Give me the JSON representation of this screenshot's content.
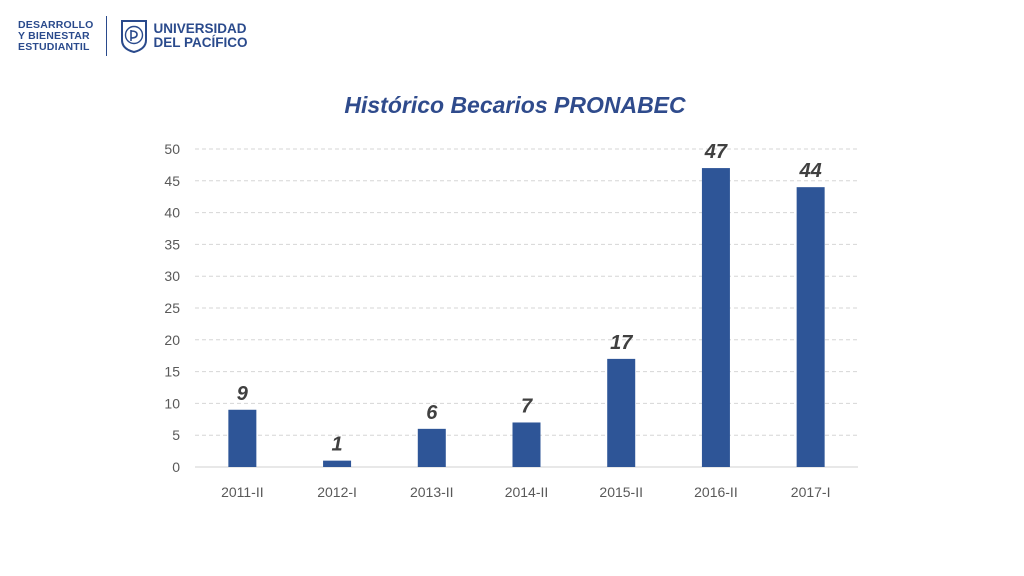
{
  "header": {
    "dept_line1": "DESARROLLO",
    "dept_line2": "Y BIENESTAR",
    "dept_line3": "ESTUDIANTIL",
    "uni_line1": "UNIVERSIDAD",
    "uni_line2": "DEL PACÍFICO",
    "brand_color": "#2a4a8c"
  },
  "chart_data": {
    "type": "bar",
    "title": "Histórico Becarios PRONABEC",
    "categories": [
      "2011-II",
      "2012-I",
      "2013-II",
      "2014-II",
      "2015-II",
      "2016-II",
      "2017-I"
    ],
    "values": [
      9,
      1,
      6,
      7,
      17,
      47,
      44
    ],
    "data_labels": [
      "9",
      "1",
      "6",
      "7",
      "17",
      "47",
      "44"
    ],
    "yticks": [
      "0",
      "5",
      "10",
      "15",
      "20",
      "25",
      "30",
      "35",
      "40",
      "45",
      "50"
    ],
    "ylim": [
      0,
      50
    ],
    "grid": true,
    "bar_color": "#2e5597"
  }
}
